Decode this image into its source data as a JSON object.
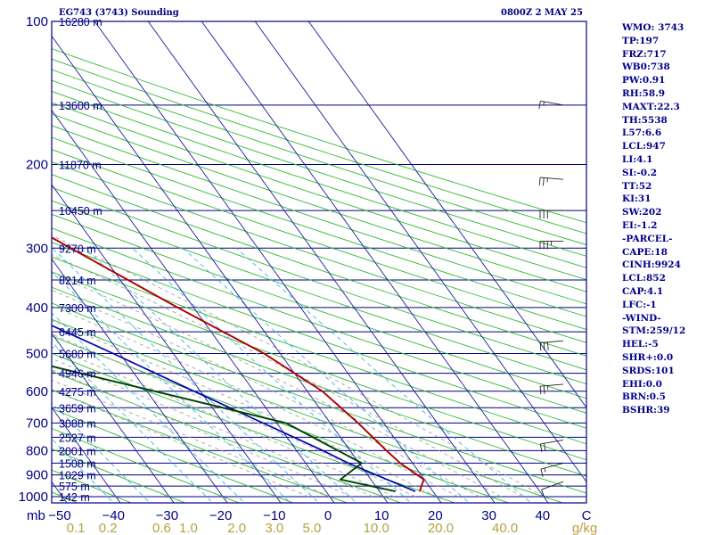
{
  "header": {
    "station_title": "EG743 (3743) Sounding",
    "valid_time": "0800Z  2 MAY 25"
  },
  "stats": [
    "WMO: 3743",
    "TP:197",
    "FRZ:717",
    "WB0:738",
    "PW:0.91",
    "RH:58.9",
    "MAXT:22.3",
    "TH:5538",
    "L57:6.6",
    "LCL:947",
    "LI:4.1",
    "SI:-0.2",
    "TT:52",
    "KI:31",
    "SW:202",
    "EI:-1.2",
    "-PARCEL-",
    "CAPE:18",
    "CINH:9924",
    "LCL:852",
    "CAP:4.1",
    "LFC:-1",
    "-WIND-",
    "STM:259/12",
    "HEL:-5",
    "SHR+:0.0",
    "SRDS:101",
    "EHI:0.0",
    "BRN:0.5",
    "BSHR:39"
  ],
  "colors": {
    "isobar": "#000080",
    "isotherm": "#1a1aa0",
    "dry_adiabat": "#33b833",
    "mixing_ratio": "#3cb4e6",
    "moist_adiabat": "#999999",
    "temperature": "#b00000",
    "dewpoint": "#004400",
    "parcel": "#0000b0",
    "axis_text": "#000080",
    "mixing_text": "#b8a040"
  },
  "chart_data": {
    "type": "skew-t",
    "pressure_ticks": [
      100,
      200,
      300,
      400,
      500,
      600,
      700,
      800,
      900,
      1000
    ],
    "axis_unit": "mb",
    "temperature_ticks": [
      -50,
      -40,
      -30,
      -20,
      -10,
      0,
      10,
      20,
      30,
      40
    ],
    "temperature_tick_labels": [
      "−50",
      "−40",
      "−30",
      "−20",
      "−10",
      "0",
      "10",
      "20",
      "30",
      "40"
    ],
    "temperature_unit": "C",
    "mixing_ratio_labels": [
      {
        "text": "0.1",
        "t": -47
      },
      {
        "text": "0.2",
        "t": -41
      },
      {
        "text": "0.6",
        "t": -31
      },
      {
        "text": "1.0",
        "t": -26
      },
      {
        "text": "2.0",
        "t": -17
      },
      {
        "text": "3.0",
        "t": -10
      },
      {
        "text": "5.0",
        "t": -3
      },
      {
        "text": "10.0",
        "t": 9
      },
      {
        "text": "20.0",
        "t": 21
      },
      {
        "text": "40.0",
        "t": 33
      }
    ],
    "mixing_ratio_unit": "g/kg",
    "height_levels": [
      {
        "p": 100,
        "label": "16280 m"
      },
      {
        "p": 150,
        "label": "13600 m"
      },
      {
        "p": 200,
        "label": "11870 m"
      },
      {
        "p": 250,
        "label": "10450 m"
      },
      {
        "p": 300,
        "label": "9270 m"
      },
      {
        "p": 350,
        "label": "8214 m"
      },
      {
        "p": 400,
        "label": "7300 m"
      },
      {
        "p": 450,
        "label": "6445 m"
      },
      {
        "p": 500,
        "label": "5680 m"
      },
      {
        "p": 550,
        "label": "4946 m"
      },
      {
        "p": 600,
        "label": "4275 m"
      },
      {
        "p": 650,
        "label": "3659 m"
      },
      {
        "p": 700,
        "label": "3088 m"
      },
      {
        "p": 750,
        "label": "2527 m"
      },
      {
        "p": 800,
        "label": "2001 m"
      },
      {
        "p": 850,
        "label": "1508 m"
      },
      {
        "p": 900,
        "label": "1029 m"
      },
      {
        "p": 950,
        "label": "575 m"
      },
      {
        "p": 1000,
        "label": "142 m"
      }
    ],
    "temperature_profile": [
      {
        "p": 975,
        "t": 17.5
      },
      {
        "p": 920,
        "t": 19.9
      },
      {
        "p": 850,
        "t": 17.7
      },
      {
        "p": 800,
        "t": 16.8
      },
      {
        "p": 700,
        "t": 15.2
      },
      {
        "p": 600,
        "t": 12.8
      },
      {
        "p": 500,
        "t": 7.0
      },
      {
        "p": 400,
        "t": -3.0
      },
      {
        "p": 300,
        "t": -15.0
      },
      {
        "p": 250,
        "t": -22.5
      },
      {
        "p": 200,
        "t": -32.0
      },
      {
        "p": 150,
        "t": -38.0
      },
      {
        "p": 100,
        "t": -48.6
      }
    ],
    "dewpoint_profile": [
      {
        "p": 975,
        "t": 13.0
      },
      {
        "p": 920,
        "t": 4.3
      },
      {
        "p": 850,
        "t": 10.5
      },
      {
        "p": 700,
        "t": 1.7
      },
      {
        "p": 500,
        "t": -42.5
      },
      {
        "p": 400,
        "t": -30.0
      },
      {
        "p": 300,
        "t": -45.7
      },
      {
        "p": 250,
        "t": -55.8
      },
      {
        "p": 200,
        "t": -64.0
      },
      {
        "p": 150,
        "t": -68.0
      },
      {
        "p": 100,
        "t": -78.1
      }
    ],
    "parcel_profile": [
      {
        "p": 975,
        "t": 16.7
      },
      {
        "p": 852,
        "t": 8.1
      },
      {
        "p": 800,
        "t": 4.9
      },
      {
        "p": 700,
        "t": -2.6
      },
      {
        "p": 600,
        "t": -11.2
      },
      {
        "p": 500,
        "t": -21.2
      },
      {
        "p": 400,
        "t": -33.9
      },
      {
        "p": 300,
        "t": -48.4
      },
      {
        "p": 200,
        "t": -69.0
      },
      {
        "p": 150,
        "t": -80.0
      },
      {
        "p": 100,
        "t": -97.0
      }
    ],
    "wind_barbs": [
      {
        "p": 930,
        "dir": 250,
        "kt": 10
      },
      {
        "p": 850,
        "dir": 255,
        "kt": 15
      },
      {
        "p": 760,
        "dir": 260,
        "kt": 20
      },
      {
        "p": 580,
        "dir": 265,
        "kt": 25
      },
      {
        "p": 470,
        "dir": 265,
        "kt": 30
      },
      {
        "p": 290,
        "dir": 270,
        "kt": 35
      },
      {
        "p": 250,
        "dir": 270,
        "kt": 30
      },
      {
        "p": 215,
        "dir": 275,
        "kt": 25
      },
      {
        "p": 150,
        "dir": 280,
        "kt": 15
      }
    ]
  }
}
